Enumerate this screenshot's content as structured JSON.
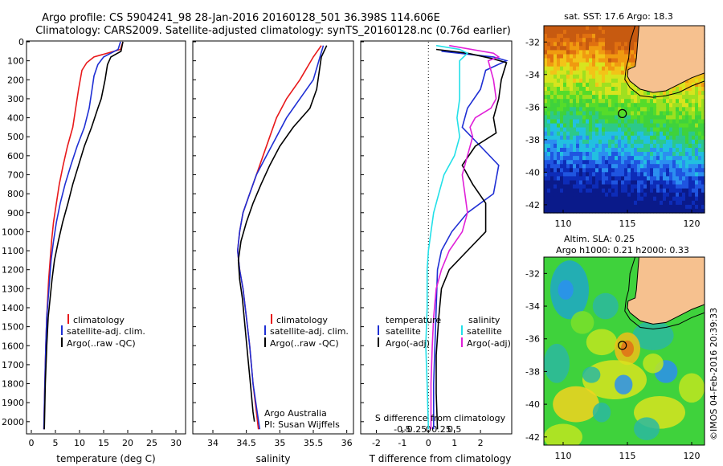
{
  "header": {
    "line1": "Argo profile: CS 5904241_98 28-Jan-2016 20160128_501 36.398S 114.606E",
    "line2": "Climatology: CARS2009. Satellite-adjusted climatology: synTS_20160128.nc (0.76d earlier)"
  },
  "depth_ticks": [
    0,
    100,
    200,
    300,
    400,
    500,
    600,
    700,
    800,
    900,
    1000,
    1100,
    1200,
    1300,
    1400,
    1500,
    1600,
    1700,
    1800,
    1900,
    2000
  ],
  "colors": {
    "climatology": "#e8191b",
    "satellite": "#1f2fd4",
    "argo": "#000000",
    "cyan": "#22e0e8",
    "magenta": "#e020d8",
    "land": "#f6c18f"
  },
  "chart_data": [
    {
      "type": "line",
      "id": "temperature",
      "xlabel": "temperature (deg C)",
      "xlim": [
        -1,
        32
      ],
      "ylim": [
        2060,
        0
      ],
      "xticks": [
        0,
        5,
        10,
        15,
        20,
        25,
        30
      ],
      "legend": [
        "climatology",
        "satellite-adj. clim.",
        "Argo(..raw -QC)"
      ],
      "series": [
        {
          "name": "climatology",
          "color": "#e8191b",
          "points": [
            [
              19,
              0
            ],
            [
              18.5,
              40
            ],
            [
              13,
              80
            ],
            [
              11.5,
              110
            ],
            [
              10.5,
              150
            ],
            [
              9.8,
              250
            ],
            [
              9.2,
              350
            ],
            [
              8.6,
              450
            ],
            [
              7.5,
              550
            ],
            [
              6.6,
              650
            ],
            [
              5.8,
              750
            ],
            [
              5.2,
              850
            ],
            [
              4.6,
              950
            ],
            [
              4.2,
              1050
            ],
            [
              3.9,
              1150
            ],
            [
              3.6,
              1250
            ],
            [
              3.4,
              1350
            ],
            [
              3.2,
              1450
            ],
            [
              3,
              1600
            ],
            [
              2.8,
              1800
            ],
            [
              2.6,
              2040
            ]
          ]
        },
        {
          "name": "satellite-adj. clim.",
          "color": "#1f2fd4",
          "points": [
            [
              18.5,
              0
            ],
            [
              18,
              40
            ],
            [
              15,
              80
            ],
            [
              13.8,
              120
            ],
            [
              13,
              180
            ],
            [
              12.6,
              250
            ],
            [
              12,
              350
            ],
            [
              11,
              450
            ],
            [
              9.5,
              550
            ],
            [
              8.2,
              650
            ],
            [
              7,
              750
            ],
            [
              6,
              850
            ],
            [
              5.2,
              950
            ],
            [
              4.6,
              1050
            ],
            [
              4.1,
              1150
            ],
            [
              3.8,
              1250
            ],
            [
              3.5,
              1350
            ],
            [
              3.2,
              1450
            ],
            [
              3,
              1600
            ],
            [
              2.8,
              1800
            ],
            [
              2.6,
              2040
            ]
          ]
        },
        {
          "name": "Argo(..raw -QC)",
          "color": "#000000",
          "points": [
            [
              19,
              0
            ],
            [
              18.6,
              50
            ],
            [
              16.5,
              80
            ],
            [
              15.8,
              120
            ],
            [
              15.3,
              200
            ],
            [
              14.5,
              300
            ],
            [
              13.8,
              350
            ],
            [
              12.5,
              450
            ],
            [
              11,
              550
            ],
            [
              9.8,
              650
            ],
            [
              8.6,
              750
            ],
            [
              7.6,
              850
            ],
            [
              6.5,
              950
            ],
            [
              5.6,
              1050
            ],
            [
              4.8,
              1150
            ],
            [
              4.3,
              1250
            ],
            [
              3.9,
              1350
            ],
            [
              3.5,
              1450
            ],
            [
              3.2,
              1600
            ],
            [
              2.9,
              1800
            ],
            [
              2.7,
              2040
            ]
          ]
        }
      ]
    },
    {
      "type": "line",
      "id": "salinity",
      "xlabel": "salinity",
      "xlim": [
        33.7,
        36.1
      ],
      "ylim": [
        2060,
        0
      ],
      "xticks": [
        34,
        34.5,
        35,
        35.5,
        36
      ],
      "legend": [
        "climatology",
        "satellite-adj. clim.",
        "Argo(..raw -QC)"
      ],
      "notes": [
        "Argo Australia",
        "PI: Susan Wijffels"
      ],
      "series": [
        {
          "name": "climatology",
          "color": "#e8191b",
          "points": [
            [
              35.62,
              20
            ],
            [
              35.5,
              80
            ],
            [
              35.3,
              200
            ],
            [
              35.1,
              300
            ],
            [
              34.95,
              400
            ],
            [
              34.85,
              500
            ],
            [
              34.75,
              600
            ],
            [
              34.65,
              700
            ],
            [
              34.55,
              800
            ],
            [
              34.45,
              900
            ],
            [
              34.4,
              1000
            ],
            [
              34.37,
              1100
            ],
            [
              34.4,
              1200
            ],
            [
              34.45,
              1300
            ],
            [
              34.5,
              1450
            ],
            [
              34.55,
              1600
            ],
            [
              34.6,
              1800
            ],
            [
              34.68,
              2040
            ]
          ]
        },
        {
          "name": "satellite-adj. clim.",
          "color": "#1f2fd4",
          "points": [
            [
              35.65,
              20
            ],
            [
              35.6,
              80
            ],
            [
              35.5,
              200
            ],
            [
              35.3,
              300
            ],
            [
              35.1,
              400
            ],
            [
              34.95,
              500
            ],
            [
              34.8,
              600
            ],
            [
              34.65,
              700
            ],
            [
              34.55,
              800
            ],
            [
              34.45,
              900
            ],
            [
              34.4,
              1000
            ],
            [
              34.37,
              1100
            ],
            [
              34.4,
              1200
            ],
            [
              34.45,
              1300
            ],
            [
              34.5,
              1450
            ],
            [
              34.55,
              1600
            ],
            [
              34.6,
              1800
            ],
            [
              34.7,
              2040
            ]
          ]
        },
        {
          "name": "Argo(..raw -QC)",
          "color": "#000000",
          "points": [
            [
              35.7,
              20
            ],
            [
              35.62,
              80
            ],
            [
              35.55,
              250
            ],
            [
              35.45,
              350
            ],
            [
              35.2,
              450
            ],
            [
              35.0,
              550
            ],
            [
              34.85,
              650
            ],
            [
              34.72,
              750
            ],
            [
              34.6,
              850
            ],
            [
              34.5,
              950
            ],
            [
              34.42,
              1050
            ],
            [
              34.38,
              1150
            ],
            [
              34.4,
              1250
            ],
            [
              34.44,
              1350
            ],
            [
              34.48,
              1500
            ],
            [
              34.52,
              1650
            ],
            [
              34.56,
              1800
            ],
            [
              34.6,
              1950
            ],
            [
              34.62,
              2000
            ]
          ]
        }
      ]
    },
    {
      "type": "line",
      "id": "difference",
      "xlabel": "T difference from climatology",
      "x2label": "S difference from climatology",
      "xlim": [
        -2.6,
        3.2
      ],
      "ylim": [
        2060,
        0
      ],
      "xticks": [
        -2,
        -1,
        0,
        1,
        2
      ],
      "x2ticks": [
        {
          "v": -1,
          "label": "-0.5"
        },
        {
          "v": -0.5,
          "label": "-0.25"
        },
        {
          "v": 0,
          "label": "0"
        },
        {
          "v": 0.5,
          "label": "0.25"
        },
        {
          "v": 1,
          "label": "0.5"
        }
      ],
      "legend_temperature": {
        "title": "temperature",
        "items": [
          "satellite",
          "Argo(-adj)"
        ]
      },
      "legend_salinity": {
        "title": "salinity",
        "items": [
          "satellite",
          "Argo(-adj)"
        ]
      },
      "series": [
        {
          "name": "temperature satellite",
          "color": "#1f2fd4",
          "points": [
            [
              0.5,
              50
            ],
            [
              2.5,
              80
            ],
            [
              3,
              100
            ],
            [
              2.2,
              150
            ],
            [
              2,
              250
            ],
            [
              1.5,
              350
            ],
            [
              1.3,
              450
            ],
            [
              2,
              550
            ],
            [
              2.7,
              650
            ],
            [
              2.5,
              800
            ],
            [
              1.5,
              900
            ],
            [
              0.9,
              1000
            ],
            [
              0.5,
              1100
            ],
            [
              0.35,
              1200
            ],
            [
              0.3,
              1400
            ],
            [
              0.25,
              1600
            ],
            [
              0.2,
              1800
            ],
            [
              0.2,
              2040
            ]
          ]
        },
        {
          "name": "temperature Argo(-adj)",
          "color": "#000000",
          "points": [
            [
              0.3,
              40
            ],
            [
              1.5,
              60
            ],
            [
              2.5,
              90
            ],
            [
              3,
              110
            ],
            [
              2.8,
              200
            ],
            [
              2.7,
              300
            ],
            [
              2.5,
              400
            ],
            [
              2.6,
              480
            ],
            [
              1.8,
              550
            ],
            [
              1.3,
              650
            ],
            [
              1.7,
              750
            ],
            [
              2.2,
              850
            ],
            [
              2.2,
              1000
            ],
            [
              1.5,
              1100
            ],
            [
              0.8,
              1200
            ],
            [
              0.5,
              1300
            ],
            [
              0.4,
              1450
            ],
            [
              0.3,
              1650
            ],
            [
              0.3,
              1850
            ],
            [
              0.35,
              2040
            ]
          ]
        },
        {
          "name": "salinity satellite",
          "color": "#22e0e8",
          "points": [
            [
              0.3,
              20
            ],
            [
              1.2,
              40
            ],
            [
              1.5,
              60
            ],
            [
              1.2,
              100
            ],
            [
              1.2,
              200
            ],
            [
              1.2,
              300
            ],
            [
              1.1,
              400
            ],
            [
              1.2,
              500
            ],
            [
              1,
              600
            ],
            [
              0.6,
              700
            ],
            [
              0.4,
              800
            ],
            [
              0.2,
              900
            ],
            [
              0.1,
              1000
            ],
            [
              0,
              1100
            ],
            [
              -0.05,
              1200
            ],
            [
              -0.05,
              1400
            ],
            [
              -0.1,
              1600
            ],
            [
              -0.05,
              1800
            ],
            [
              0,
              2040
            ]
          ]
        },
        {
          "name": "salinity Argo(-adj)",
          "color": "#e020d8",
          "points": [
            [
              0.8,
              20
            ],
            [
              2.5,
              60
            ],
            [
              2.7,
              80
            ],
            [
              2.3,
              100
            ],
            [
              2.5,
              200
            ],
            [
              2.6,
              300
            ],
            [
              2.4,
              350
            ],
            [
              1.8,
              400
            ],
            [
              1.6,
              450
            ],
            [
              1.7,
              500
            ],
            [
              1.5,
              600
            ],
            [
              1.3,
              700
            ],
            [
              1.4,
              800
            ],
            [
              1.5,
              900
            ],
            [
              1.3,
              1000
            ],
            [
              0.8,
              1100
            ],
            [
              0.5,
              1200
            ],
            [
              0.3,
              1300
            ],
            [
              0.2,
              1450
            ],
            [
              0.15,
              1600
            ],
            [
              0.1,
              1800
            ],
            [
              0.1,
              2040
            ]
          ]
        }
      ]
    },
    {
      "type": "heatmap",
      "id": "sst-map",
      "title": "sat. SST: 17.6 Argo: 18.3",
      "xlim": [
        108.5,
        121
      ],
      "ylim": [
        -42.5,
        -31
      ],
      "xticks": [
        110,
        115,
        120
      ],
      "yticks": [
        -32,
        -34,
        -36,
        -38,
        -40,
        -42
      ],
      "profile_location": [
        114.606,
        -36.398
      ]
    },
    {
      "type": "heatmap",
      "id": "sla-map",
      "title1": "Altim. SLA: 0.25",
      "title2": "Argo h1000: 0.21 h2000: 0.33",
      "xlim": [
        108.5,
        121
      ],
      "ylim": [
        -42.5,
        -31
      ],
      "xticks": [
        110,
        115,
        120
      ],
      "yticks": [
        -32,
        -34,
        -36,
        -38,
        -40,
        -42
      ],
      "profile_location": [
        114.606,
        -36.398
      ]
    }
  ],
  "credit": "©IMOS 04-Feb-2016 20:39:33"
}
